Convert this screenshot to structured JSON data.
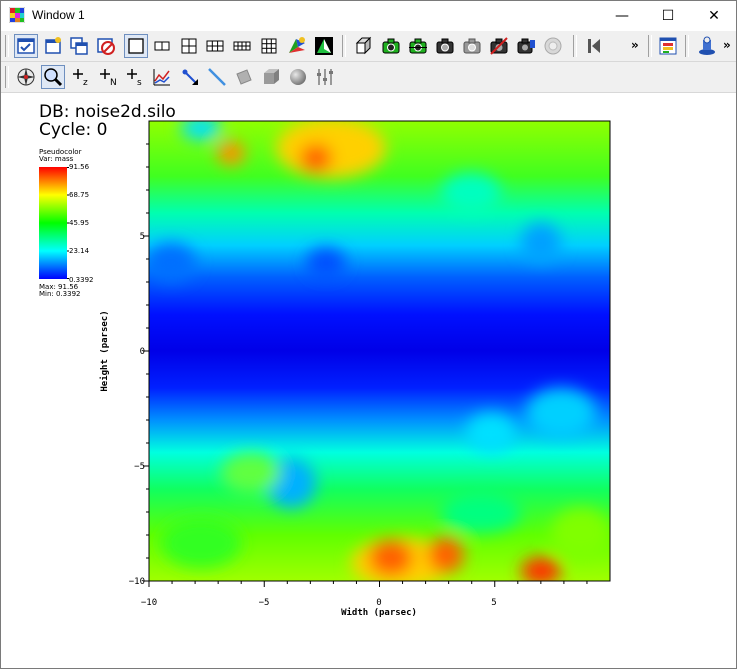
{
  "window": {
    "title": "Window 1"
  },
  "window_controls": {
    "minimize": "—",
    "maximize": "☐",
    "close": "✕"
  },
  "toolbar1": {
    "icons": [
      "active-window-icon",
      "new-window-icon",
      "clone-window-icon",
      "delete-window-icon",
      "layout-1x1-icon",
      "layout-1x2-icon",
      "layout-2x2-icon",
      "layout-2x3-icon",
      "layout-3x3-icon",
      "lock-view-icon",
      "invert-background-icon",
      "perspective-view-icon",
      "reset-view-icon",
      "recenter-view-icon",
      "undo-view-icon",
      "lock-time-icon",
      "lock-tools-icon",
      "toggle-spin-icon",
      "fullframe-icon",
      "animation-back-icon",
      "annotation-icon",
      "save-window-icon"
    ],
    "overflow": "»"
  },
  "toolbar2": {
    "icons": [
      "navigate-icon",
      "zoom-icon",
      "zone-pick-icon",
      "node-pick-icon",
      "spreadsheet-pick-icon",
      "curve-pick-icon",
      "point-tool-icon",
      "line-tool-icon",
      "plane-tool-icon",
      "box-tool-icon",
      "sphere-tool-icon",
      "axis-restrict-icon"
    ]
  },
  "plot": {
    "db_label": "DB: noise2d.silo",
    "cycle_label": "Cycle: 0",
    "xlabel": "Width (parsec)",
    "ylabel": "Height (parsec)",
    "xticks": [
      "−10",
      "−5",
      "0",
      "5"
    ],
    "yticks": [
      "−10",
      "−5",
      "0",
      "5"
    ],
    "xlim": [
      -10,
      10
    ],
    "ylim": [
      -10,
      10
    ]
  },
  "legend": {
    "title": "Pseudocolor",
    "var": "Var: mass",
    "labels": [
      "91.56",
      "68.75",
      "45.95",
      "23.14",
      "0.3392"
    ],
    "max": "Max: 91.56",
    "min": "Min: 0.3392"
  },
  "chart_data": {
    "type": "heatmap",
    "title": "",
    "xlabel": "Width (parsec)",
    "ylabel": "Height (parsec)",
    "xlim": [
      -10,
      10
    ],
    "ylim": [
      -10,
      10
    ],
    "colormap": "hot (blue-cyan-green-yellow-red)",
    "value_range": [
      0.3392,
      91.56
    ],
    "colors": {
      "low": "#0000ff",
      "mid": "#00ff00",
      "high": "#ff0000"
    }
  }
}
